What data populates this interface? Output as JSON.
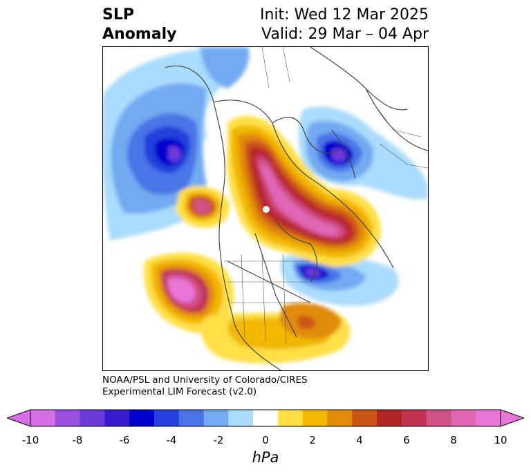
{
  "title": {
    "left_line1": "SLP",
    "left_line2": "Anomaly",
    "right_line1": "Init: Wed 12 Mar 2025",
    "right_line2": "Valid: 29 Mar – 04 Apr"
  },
  "credit": {
    "line1": "NOAA/PSL and University of Colorado/CIRES",
    "line2": "Experimental LIM Forecast (v2.0)"
  },
  "colorbar": {
    "unit": "hPa",
    "ticks": [
      "-10",
      "-8",
      "-6",
      "-4",
      "-2",
      "0",
      "2",
      "4",
      "6",
      "8",
      "10"
    ],
    "levels": [
      -10,
      -9,
      -8,
      -7,
      -6,
      -5,
      -4,
      -3,
      -2,
      -1,
      1,
      2,
      3,
      4,
      5,
      6,
      7,
      8,
      9,
      10
    ],
    "colors": [
      "#d66ee6",
      "#9b4fe0",
      "#6a3ad8",
      "#3a1ccf",
      "#0000cc",
      "#2340db",
      "#4a74e6",
      "#72aaf2",
      "#aadcfd",
      "#ffffff",
      "#ffe047",
      "#f2b700",
      "#e18b08",
      "#cc5515",
      "#b32425",
      "#c23352",
      "#d05185",
      "#df67b6",
      "#ea76d8"
    ],
    "min_extend_color": "#d66ee6",
    "max_extend_color": "#ea76d8"
  }
}
